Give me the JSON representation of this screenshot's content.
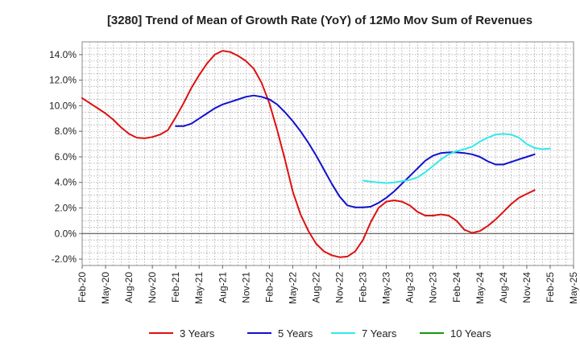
{
  "chart_data": {
    "type": "line",
    "title": "[3280]  Trend of Mean of Growth Rate (YoY) of 12Mo Mov Sum of Revenues",
    "xlabel": "",
    "ylabel": "",
    "ylim": [
      -2.5,
      15.0
    ],
    "ytick_values": [
      -2,
      0,
      2,
      4,
      6,
      8,
      10,
      12,
      14
    ],
    "ytick_labels": [
      "-2.0%",
      "0.0%",
      "2.0%",
      "4.0%",
      "6.0%",
      "8.0%",
      "10.0%",
      "12.0%",
      "14.0%"
    ],
    "x_categories": [
      "Feb-20",
      "May-20",
      "Aug-20",
      "Nov-20",
      "Feb-21",
      "May-21",
      "Aug-21",
      "Nov-21",
      "Feb-22",
      "May-22",
      "Aug-22",
      "Nov-22",
      "Feb-23",
      "May-23",
      "Aug-23",
      "Nov-23",
      "Feb-24",
      "May-24",
      "Aug-24",
      "Nov-24",
      "Feb-25",
      "May-25"
    ],
    "grid": true,
    "legend_position": "bottom",
    "series": [
      {
        "name": "3 Years",
        "color": "#dd1111",
        "start_index": 0,
        "values": [
          10.6,
          10.2,
          9.8,
          9.4,
          8.9,
          8.3,
          7.8,
          7.5,
          7.45,
          7.55,
          7.75,
          8.1,
          9.1,
          10.2,
          11.4,
          12.4,
          13.3,
          14.0,
          14.3,
          14.2,
          13.9,
          13.5,
          12.9,
          11.8,
          10.2,
          8.1,
          5.8,
          3.3,
          1.5,
          0.2,
          -0.8,
          -1.4,
          -1.7,
          -1.85,
          -1.8,
          -1.4,
          -0.5,
          0.9,
          2.0,
          2.5,
          2.6,
          2.5,
          2.2,
          1.7,
          1.4,
          1.4,
          1.5,
          1.4,
          1.0,
          0.3,
          0.05,
          0.2,
          0.6,
          1.1,
          1.7,
          2.3,
          2.8,
          3.1,
          3.4
        ]
      },
      {
        "name": "5 Years",
        "color": "#1111cc",
        "start_index": 12,
        "values": [
          8.4,
          8.4,
          8.6,
          9.0,
          9.4,
          9.8,
          10.1,
          10.3,
          10.5,
          10.7,
          10.8,
          10.7,
          10.5,
          10.1,
          9.5,
          8.8,
          8.0,
          7.1,
          6.1,
          5.0,
          3.9,
          2.9,
          2.2,
          2.05,
          2.05,
          2.1,
          2.4,
          2.8,
          3.3,
          3.9,
          4.5,
          5.1,
          5.7,
          6.1,
          6.3,
          6.35,
          6.35,
          6.3,
          6.2,
          6.0,
          5.65,
          5.4,
          5.4,
          5.6,
          5.8,
          6.0,
          6.2
        ]
      },
      {
        "name": "7 Years",
        "color": "#33e8e8",
        "start_index": 36,
        "values": [
          4.15,
          4.05,
          4.0,
          3.95,
          4.0,
          4.1,
          4.2,
          4.4,
          4.8,
          5.3,
          5.8,
          6.2,
          6.45,
          6.6,
          6.8,
          7.2,
          7.5,
          7.75,
          7.8,
          7.75,
          7.5,
          7.0,
          6.7,
          6.6,
          6.65
        ]
      },
      {
        "name": "10 Years",
        "color": "#119911",
        "start_index": 0,
        "values": []
      }
    ]
  }
}
